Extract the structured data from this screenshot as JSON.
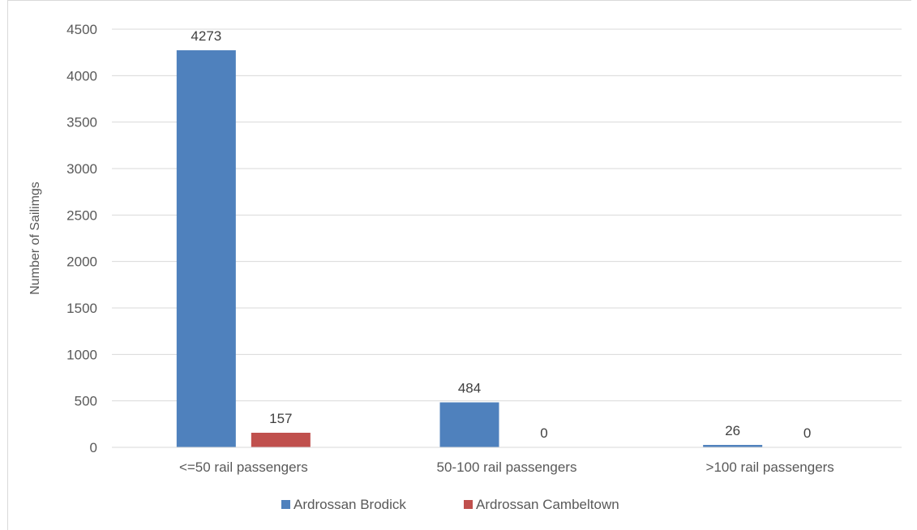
{
  "chart_data": {
    "type": "bar",
    "title": "",
    "xlabel": "",
    "ylabel": "Number of Sailimgs",
    "ylim": [
      0,
      4500
    ],
    "yticks": [
      0,
      500,
      1000,
      1500,
      2000,
      2500,
      3000,
      3500,
      4000,
      4500
    ],
    "grid": true,
    "legend_position": "bottom",
    "categories": [
      "<=50 rail passengers",
      "50-100 rail passengers",
      ">100 rail passengers"
    ],
    "series": [
      {
        "name": "Ardrossan Brodick",
        "values": [
          4273,
          484,
          26
        ],
        "color": "#4f81bd"
      },
      {
        "name": "Ardrossan Cambeltown",
        "values": [
          157,
          0,
          0
        ],
        "color": "#c0504d"
      }
    ]
  }
}
